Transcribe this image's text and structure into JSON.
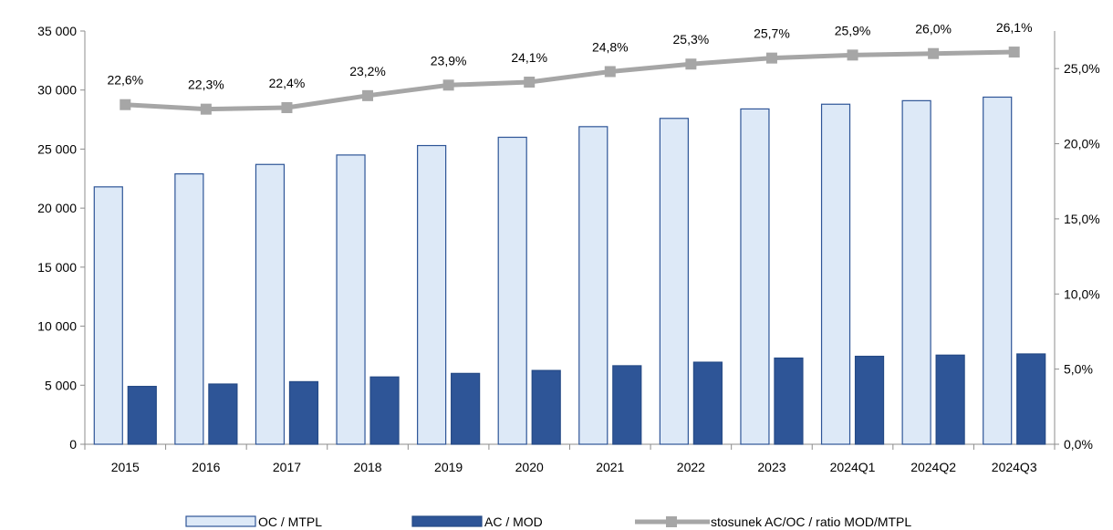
{
  "chart_data": {
    "type": "bar",
    "categories": [
      "2015",
      "2016",
      "2017",
      "2018",
      "2019",
      "2020",
      "2021",
      "2022",
      "2023",
      "2024Q1",
      "2024Q2",
      "2024Q3"
    ],
    "series": [
      {
        "name": "OC / MTPL",
        "type": "bar",
        "axis": "left",
        "color": "#dde9f7",
        "stroke": "#2e5597",
        "values": [
          21800,
          22900,
          23700,
          24500,
          25300,
          26000,
          26900,
          27600,
          28400,
          28800,
          29100,
          29400
        ]
      },
      {
        "name": "AC / MOD",
        "type": "bar",
        "axis": "left",
        "color": "#2e5597",
        "stroke": "#254a86",
        "values": [
          4900,
          5100,
          5300,
          5700,
          6000,
          6250,
          6650,
          6950,
          7300,
          7450,
          7550,
          7650
        ]
      },
      {
        "name": "stosunek AC/OC / ratio MOD/MTPL",
        "type": "line",
        "axis": "right",
        "color": "#a6a6a6",
        "values": [
          22.6,
          22.3,
          22.4,
          23.2,
          23.9,
          24.1,
          24.8,
          25.3,
          25.7,
          25.9,
          26.0,
          26.1
        ],
        "labels": [
          "22,6%",
          "22,3%",
          "22,4%",
          "23,2%",
          "23,9%",
          "24,1%",
          "24,8%",
          "25,3%",
          "25,7%",
          "25,9%",
          "26,0%",
          "26,1%"
        ]
      }
    ],
    "y_left": {
      "min": 0,
      "max": 35000,
      "ticks": [
        0,
        5000,
        10000,
        15000,
        20000,
        25000,
        30000,
        35000
      ],
      "tick_labels": [
        "0",
        "5 000",
        "10 000",
        "15 000",
        "20 000",
        "25 000",
        "30 000",
        "35 000"
      ]
    },
    "y_right": {
      "min": 0,
      "max": 27.5,
      "ticks": [
        0,
        5,
        10,
        15,
        20,
        25
      ],
      "tick_labels": [
        "0,0%",
        "5,0%",
        "10,0%",
        "15,0%",
        "20,0%",
        "25,0%"
      ]
    },
    "grid": false,
    "legend_position": "bottom",
    "title": "",
    "xlabel": "",
    "ylabel": ""
  }
}
